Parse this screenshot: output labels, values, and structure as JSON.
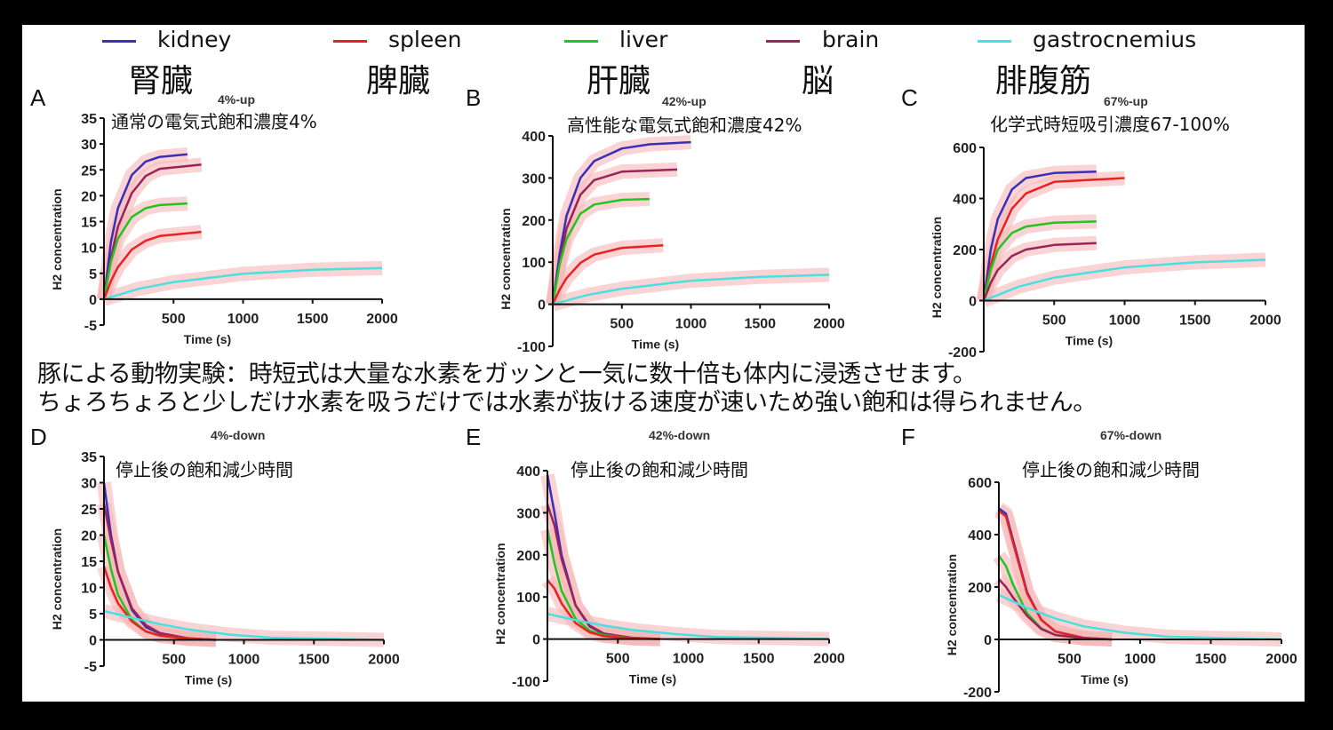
{
  "legend": [
    {
      "name": "kidney",
      "ja": "腎臓",
      "color": "#3a2fb8"
    },
    {
      "name": "spleen",
      "ja": "脾臓",
      "color": "#e82222"
    },
    {
      "name": "liver",
      "ja": "肝臓",
      "color": "#22c422"
    },
    {
      "name": "brain",
      "ja": "脳",
      "color": "#9a2458"
    },
    {
      "name": "gastrocnemius",
      "ja": "腓腹筋",
      "color": "#48e0e0"
    }
  ],
  "band_color": "#f6b8b8",
  "body_text": [
    "豚による動物実験：時短式は大量な水素をガッンと一気に数十倍も体内に浸透させます。",
    "ちょろちょろと少しだけ水素を吸うだけでは水素が抜ける速度が速いため強い飽和は得られません。"
  ],
  "chart_data": [
    {
      "type": "line",
      "panel": "A",
      "title": "4%-up",
      "annotation": "通常の電気式飽和濃度4%",
      "xlabel": "Time (s)",
      "ylabel": "H2 concentration",
      "xlim": [
        0,
        2000
      ],
      "ylim": [
        -5,
        35
      ],
      "xticks": [
        500,
        1000,
        1500,
        2000
      ],
      "yticks": [
        -5,
        0,
        5,
        10,
        15,
        20,
        25,
        30,
        35
      ],
      "series": [
        {
          "name": "kidney",
          "x": [
            0,
            50,
            100,
            200,
            300,
            400,
            600
          ],
          "y": [
            0,
            11,
            17.6,
            24,
            26.6,
            27.5,
            28
          ]
        },
        {
          "name": "brain",
          "x": [
            0,
            50,
            100,
            200,
            300,
            400,
            700
          ],
          "y": [
            0,
            8,
            14,
            20.5,
            23.8,
            25.2,
            26
          ]
        },
        {
          "name": "liver",
          "x": [
            0,
            50,
            100,
            200,
            300,
            400,
            600
          ],
          "y": [
            0,
            7.2,
            11.7,
            15.9,
            17.6,
            18.2,
            18.5
          ]
        },
        {
          "name": "spleen",
          "x": [
            0,
            50,
            100,
            200,
            300,
            400,
            700
          ],
          "y": [
            0,
            3.5,
            6.2,
            9.6,
            11.3,
            12.2,
            13
          ]
        },
        {
          "name": "gastrocnemius",
          "x": [
            0,
            250,
            500,
            1000,
            1500,
            2000
          ],
          "y": [
            0,
            2,
            3.3,
            4.9,
            5.7,
            6
          ]
        }
      ]
    },
    {
      "type": "line",
      "panel": "B",
      "title": "42%-up",
      "annotation": "高性能な電気式飽和濃度42%",
      "xlabel": "Time (s)",
      "ylabel": "H2 concentration",
      "xlim": [
        0,
        2000
      ],
      "ylim": [
        -100,
        400
      ],
      "xticks": [
        500,
        1000,
        1500,
        2000
      ],
      "yticks": [
        -100,
        0,
        100,
        200,
        300,
        400
      ],
      "series": [
        {
          "name": "kidney",
          "x": [
            0,
            50,
            100,
            200,
            300,
            500,
            700,
            1000
          ],
          "y": [
            0,
            120,
            210,
            300,
            340,
            370,
            380,
            385
          ]
        },
        {
          "name": "brain",
          "x": [
            0,
            50,
            100,
            200,
            300,
            500,
            900
          ],
          "y": [
            0,
            100,
            180,
            260,
            295,
            315,
            320
          ]
        },
        {
          "name": "liver",
          "x": [
            0,
            50,
            100,
            200,
            300,
            500,
            700
          ],
          "y": [
            0,
            95,
            155,
            215,
            237,
            248,
            250
          ]
        },
        {
          "name": "spleen",
          "x": [
            0,
            50,
            100,
            200,
            300,
            500,
            800
          ],
          "y": [
            0,
            35,
            62,
            98,
            118,
            134,
            140
          ]
        },
        {
          "name": "gastrocnemius",
          "x": [
            0,
            250,
            500,
            1000,
            1500,
            2000
          ],
          "y": [
            0,
            22,
            37,
            56,
            65,
            70
          ]
        }
      ]
    },
    {
      "type": "line",
      "panel": "C",
      "title": "67%-up",
      "annotation": "化学式時短吸引濃度67-100%",
      "xlabel": "Time (s)",
      "ylabel": "H2 concentration",
      "xlim": [
        0,
        2000
      ],
      "ylim": [
        -200,
        600
      ],
      "xticks": [
        500,
        1000,
        1500,
        2000
      ],
      "yticks": [
        -200,
        0,
        200,
        400,
        600
      ],
      "series": [
        {
          "name": "kidney",
          "x": [
            0,
            50,
            100,
            200,
            300,
            500,
            800
          ],
          "y": [
            0,
            200,
            320,
            435,
            480,
            500,
            505
          ]
        },
        {
          "name": "spleen",
          "x": [
            0,
            50,
            100,
            200,
            300,
            500,
            1000
          ],
          "y": [
            0,
            140,
            240,
            360,
            420,
            465,
            480
          ]
        },
        {
          "name": "liver",
          "x": [
            0,
            50,
            100,
            200,
            300,
            500,
            800
          ],
          "y": [
            0,
            120,
            200,
            265,
            290,
            305,
            310
          ]
        },
        {
          "name": "brain",
          "x": [
            0,
            50,
            100,
            200,
            300,
            500,
            800
          ],
          "y": [
            0,
            70,
            120,
            175,
            200,
            218,
            225
          ]
        },
        {
          "name": "gastrocnemius",
          "x": [
            0,
            250,
            500,
            1000,
            1500,
            2000
          ],
          "y": [
            0,
            55,
            90,
            130,
            150,
            160
          ]
        }
      ]
    },
    {
      "type": "line",
      "panel": "D",
      "title": "4%-down",
      "annotation": "停止後の飽和減少時間",
      "xlabel": "Time (s)",
      "ylabel": "H2 concentration",
      "xlim": [
        0,
        2000
      ],
      "ylim": [
        -5,
        35
      ],
      "xticks": [
        500,
        1000,
        1500,
        2000
      ],
      "yticks": [
        -5,
        0,
        5,
        10,
        15,
        20,
        25,
        30,
        35
      ],
      "series": [
        {
          "name": "kidney",
          "x": [
            0,
            50,
            100,
            200,
            300,
            400,
            600,
            800
          ],
          "y": [
            30,
            20,
            13,
            5.7,
            2.4,
            1.2,
            0.3,
            0
          ]
        },
        {
          "name": "brain",
          "x": [
            0,
            50,
            100,
            200,
            300,
            400,
            600,
            800
          ],
          "y": [
            26,
            19,
            13,
            6,
            2.8,
            1.3,
            0.3,
            0
          ]
        },
        {
          "name": "liver",
          "x": [
            0,
            50,
            100,
            200,
            300,
            400,
            600,
            800
          ],
          "y": [
            20,
            13.5,
            8.6,
            3.8,
            1.6,
            0.8,
            0.2,
            0
          ]
        },
        {
          "name": "spleen",
          "x": [
            0,
            50,
            100,
            200,
            300,
            400,
            600,
            800
          ],
          "y": [
            14,
            10,
            7,
            3.5,
            1.6,
            0.8,
            0.2,
            0
          ]
        },
        {
          "name": "gastrocnemius",
          "x": [
            0,
            200,
            400,
            600,
            900,
            1200,
            2000
          ],
          "y": [
            5.5,
            4.2,
            3,
            2,
            1,
            0.4,
            0
          ]
        }
      ]
    },
    {
      "type": "line",
      "panel": "E",
      "title": "42%-down",
      "annotation": "停止後の飽和減少時間",
      "xlabel": "Time (s)",
      "ylabel": "H2 concentration",
      "xlim": [
        0,
        2000
      ],
      "ylim": [
        -100,
        400
      ],
      "xticks": [
        500,
        1000,
        1500,
        2000
      ],
      "yticks": [
        -100,
        0,
        100,
        200,
        300,
        400
      ],
      "series": [
        {
          "name": "kidney",
          "x": [
            0,
            50,
            100,
            200,
            300,
            400,
            600,
            800
          ],
          "y": [
            390,
            300,
            200,
            80,
            30,
            12,
            3,
            0
          ]
        },
        {
          "name": "brain",
          "x": [
            0,
            50,
            100,
            200,
            300,
            400,
            600,
            800
          ],
          "y": [
            320,
            270,
            190,
            80,
            32,
            13,
            3,
            0
          ]
        },
        {
          "name": "liver",
          "x": [
            0,
            50,
            100,
            200,
            300,
            400,
            600,
            800
          ],
          "y": [
            260,
            180,
            115,
            48,
            20,
            9,
            2,
            0
          ]
        },
        {
          "name": "spleen",
          "x": [
            0,
            50,
            100,
            200,
            300,
            400,
            600,
            800
          ],
          "y": [
            140,
            120,
            85,
            38,
            16,
            7,
            2,
            0
          ]
        },
        {
          "name": "gastrocnemius",
          "x": [
            0,
            200,
            400,
            600,
            900,
            1200,
            2000
          ],
          "y": [
            60,
            45,
            32,
            22,
            12,
            5,
            0
          ]
        }
      ]
    },
    {
      "type": "line",
      "panel": "F",
      "title": "67%-down",
      "annotation": "停止後の飽和減少時間",
      "xlabel": "Time (s)",
      "ylabel": "H2 concentration",
      "xlim": [
        0,
        2000
      ],
      "ylim": [
        -200,
        600
      ],
      "xticks": [
        500,
        1000,
        1500,
        2000
      ],
      "yticks": [
        -200,
        0,
        200,
        400,
        600
      ],
      "series": [
        {
          "name": "kidney",
          "x": [
            0,
            50,
            100,
            200,
            300,
            400,
            600,
            800
          ],
          "y": [
            500,
            480,
            380,
            180,
            75,
            30,
            6,
            0
          ]
        },
        {
          "name": "spleen",
          "x": [
            0,
            50,
            100,
            200,
            300,
            400,
            600,
            800
          ],
          "y": [
            490,
            470,
            370,
            175,
            75,
            30,
            6,
            0
          ]
        },
        {
          "name": "liver",
          "x": [
            0,
            50,
            100,
            200,
            300,
            400,
            600,
            800
          ],
          "y": [
            320,
            280,
            210,
            100,
            42,
            17,
            4,
            0
          ]
        },
        {
          "name": "brain",
          "x": [
            0,
            50,
            100,
            200,
            300,
            400,
            600,
            800
          ],
          "y": [
            230,
            200,
            160,
            90,
            40,
            17,
            4,
            0
          ]
        },
        {
          "name": "gastrocnemius",
          "x": [
            0,
            200,
            400,
            600,
            900,
            1200,
            2000
          ],
          "y": [
            170,
            120,
            80,
            50,
            25,
            10,
            0
          ]
        }
      ]
    }
  ]
}
